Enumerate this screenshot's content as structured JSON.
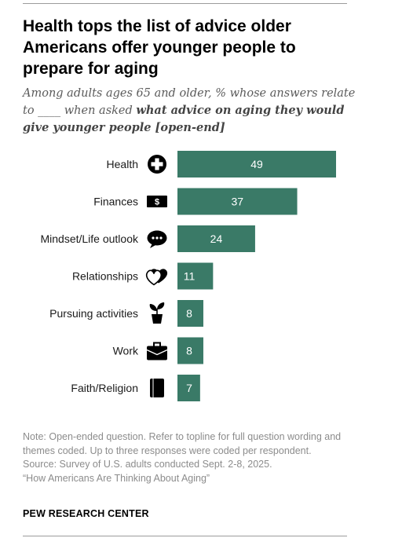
{
  "header": {
    "title": "Health tops the list of advice older Americans offer younger people to prepare for aging",
    "subtitle_part1": "Among adults ages 65 and older, % whose answers relate to ____ when asked ",
    "subtitle_bold": "what advice on aging they would give younger people [open-end]"
  },
  "colors": {
    "bar": "#3a7a67",
    "bar_label": "#ffffff",
    "icon": "#000000"
  },
  "chart_data": {
    "type": "bar",
    "orientation": "horizontal",
    "categories": [
      "Health",
      "Finances",
      "Mindset/Life outlook",
      "Relationships",
      "Pursuing activities",
      "Work",
      "Faith/Religion"
    ],
    "values": [
      49,
      37,
      24,
      11,
      8,
      8,
      7
    ],
    "icons": [
      "medical-cross-icon",
      "dollar-bill-icon",
      "chat-bubble-icon",
      "hearts-icon",
      "potted-plant-icon",
      "briefcase-icon",
      "book-icon"
    ],
    "xlim": [
      0,
      50
    ],
    "data_labels": "inside-bar",
    "grid": false,
    "legend": "none"
  },
  "footer": {
    "note": "Note: Open-ended question. Refer to topline for full question wording and themes coded. Up to three responses were coded per respondent.",
    "source": "Source: Survey of U.S. adults conducted Sept. 2-8, 2025.",
    "report": "“How Americans Are Thinking About Aging”",
    "organization": "PEW RESEARCH CENTER"
  }
}
